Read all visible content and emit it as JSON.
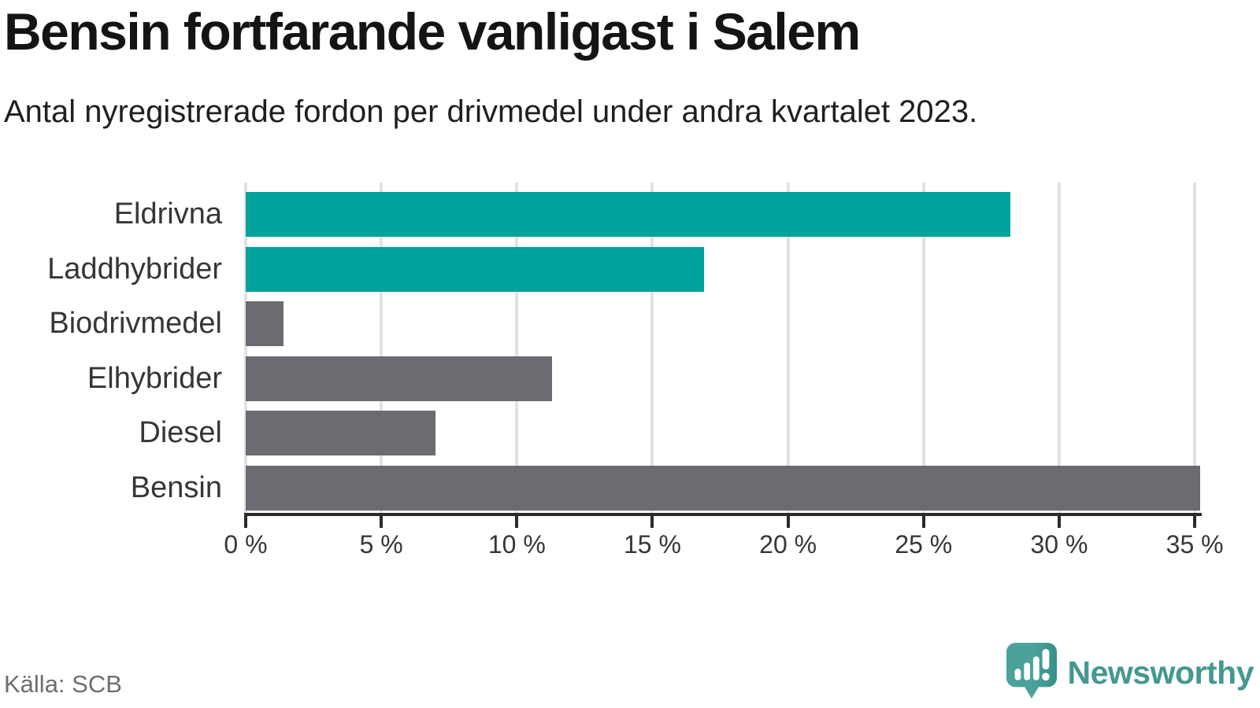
{
  "header": {
    "title": "Bensin fortfarande vanligast i Salem",
    "subtitle": "Antal nyregistrerade fordon per drivmedel under andra kvartalet 2023."
  },
  "footer": {
    "source": "Källa: SCB",
    "brand_name": "Newsworthy"
  },
  "colors": {
    "highlight_teal": "#00a39b",
    "neutral_gray": "#6d6a71",
    "axis": "#2b2b2b",
    "grid": "#e2e2e2",
    "brand_teal": "#459890"
  },
  "chart_data": {
    "type": "bar",
    "orientation": "horizontal",
    "title": "Bensin fortfarande vanligast i Salem",
    "subtitle": "Antal nyregistrerade fordon per drivmedel under andra kvartalet 2023.",
    "categories": [
      "Eldrivna",
      "Laddhybrider",
      "Biodrivmedel",
      "Elhybrider",
      "Diesel",
      "Bensin"
    ],
    "values": [
      28.2,
      16.9,
      1.4,
      11.3,
      7.0,
      35.2
    ],
    "bar_colors": [
      "#00a39b",
      "#00a39b",
      "#6d6a71",
      "#6d6a71",
      "#6d6a71",
      "#6d6a71"
    ],
    "unit": "%",
    "xlabel": "",
    "ylabel": "",
    "xlim": [
      0,
      35.2
    ],
    "xticks": [
      0,
      5,
      10,
      15,
      20,
      25,
      30,
      35
    ],
    "tick_suffix": " %",
    "grid": true,
    "legend_position": "none"
  }
}
